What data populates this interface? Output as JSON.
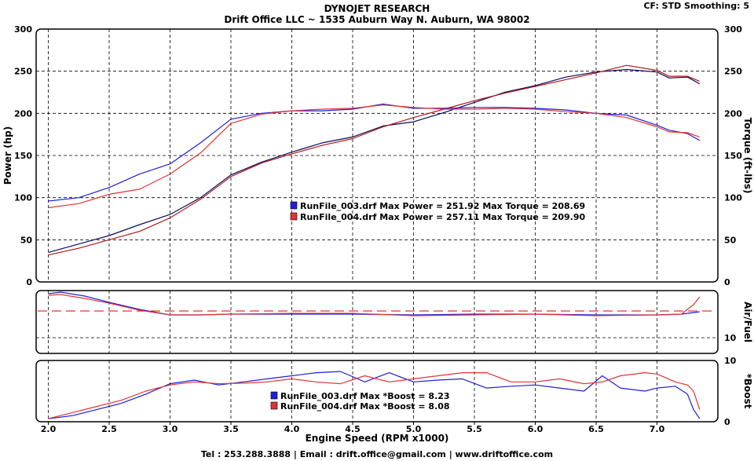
{
  "header": {
    "title": "DYNOJET RESEARCH",
    "subtitle": "Drift Office LLC ~ 1535 Auburn Way N. Auburn, WA 98002",
    "settings": "CF: STD  Smoothing: 5"
  },
  "footer": "Tel : 253.288.3888 | Email : drift.office@gmail.com | www.driftoffice.com",
  "colors": {
    "run003": "#1f1fd8",
    "run004": "#e03434",
    "run003_dark": "#0a0a60",
    "run004_dark": "#b01818"
  },
  "chart_data": [
    {
      "type": "line",
      "title": "",
      "xlabel": "Engine Speed (RPM x1000)",
      "ylabel_left": "Power (hp)",
      "ylabel_right": "Torque (ft-lbs)",
      "xlim": [
        1.9,
        7.5
      ],
      "ylim": [
        0,
        300
      ],
      "xticks": [
        "2.0",
        "2.5",
        "3.0",
        "3.5",
        "4.0",
        "4.5",
        "5.0",
        "5.5",
        "6.0",
        "6.5",
        "7.0"
      ],
      "yticks": [
        "0",
        "50",
        "100",
        "150",
        "200",
        "250",
        "300"
      ],
      "grid": true,
      "legend": [
        {
          "text": "RunFile_003.drf Max Power = 251.92     Max Torque = 208.69",
          "series": "run003"
        },
        {
          "text": "RunFile_004.drf Max Power = 257.11     Max Torque = 209.90",
          "series": "run004"
        }
      ],
      "series": [
        {
          "name": "RunFile_003.drf",
          "measure": "Power",
          "color_key": "run003_dark",
          "x": [
            2.0,
            2.25,
            2.5,
            2.75,
            3.0,
            3.25,
            3.5,
            3.75,
            4.0,
            4.25,
            4.5,
            4.75,
            5.0,
            5.25,
            5.5,
            5.75,
            6.0,
            6.25,
            6.5,
            6.75,
            7.0,
            7.1,
            7.25,
            7.35
          ],
          "values": [
            35,
            45,
            55,
            68,
            80,
            100,
            127,
            142,
            154,
            165,
            172,
            185,
            190,
            201,
            213,
            225,
            233,
            243,
            249,
            252,
            249,
            242,
            243,
            235
          ]
        },
        {
          "name": "RunFile_004.drf",
          "measure": "Power",
          "color_key": "run004_dark",
          "x": [
            2.0,
            2.25,
            2.5,
            2.75,
            3.0,
            3.25,
            3.5,
            3.75,
            4.0,
            4.25,
            4.5,
            4.75,
            5.0,
            5.25,
            5.5,
            5.75,
            6.0,
            6.25,
            6.5,
            6.75,
            7.0,
            7.1,
            7.25,
            7.35
          ],
          "values": [
            32,
            40,
            50,
            60,
            76,
            98,
            125,
            141,
            152,
            162,
            170,
            184,
            195,
            205,
            215,
            224,
            232,
            240,
            248,
            257,
            251,
            244,
            244,
            238
          ]
        },
        {
          "name": "RunFile_003.drf",
          "measure": "Torque",
          "color_key": "run003",
          "x": [
            2.0,
            2.25,
            2.5,
            2.75,
            3.0,
            3.25,
            3.5,
            3.75,
            4.0,
            4.25,
            4.5,
            4.75,
            5.0,
            5.25,
            5.5,
            5.75,
            6.0,
            6.25,
            6.5,
            6.75,
            7.0,
            7.1,
            7.25,
            7.35
          ],
          "values": [
            96,
            100,
            112,
            128,
            140,
            165,
            193,
            200,
            203,
            203,
            205,
            211,
            206,
            206,
            207,
            207,
            206,
            204,
            200,
            198,
            186,
            180,
            176,
            168
          ]
        },
        {
          "name": "RunFile_004.drf",
          "measure": "Torque",
          "color_key": "run004",
          "x": [
            2.0,
            2.25,
            2.5,
            2.75,
            3.0,
            3.25,
            3.5,
            3.75,
            4.0,
            4.25,
            4.5,
            4.75,
            5.0,
            5.25,
            5.5,
            5.75,
            6.0,
            6.25,
            6.5,
            6.75,
            7.0,
            7.1,
            7.25,
            7.35
          ],
          "values": [
            88,
            93,
            104,
            110,
            128,
            153,
            188,
            199,
            203,
            205,
            206,
            210,
            207,
            205,
            205,
            206,
            205,
            202,
            200,
            195,
            184,
            178,
            177,
            172
          ]
        }
      ]
    },
    {
      "type": "line",
      "title": "",
      "xlabel": "",
      "ylabel": "Air/Fuel",
      "xlim": [
        1.9,
        7.5
      ],
      "ylim": [
        8,
        16
      ],
      "yticks": [
        "10"
      ],
      "reference_line": 13.4,
      "grid": true,
      "series": [
        {
          "name": "RunFile_003.drf",
          "color_key": "run003",
          "x": [
            2.0,
            2.1,
            2.3,
            2.5,
            2.75,
            3.0,
            3.25,
            3.5,
            4.0,
            4.5,
            5.0,
            5.5,
            6.0,
            6.5,
            7.0,
            7.2,
            7.3,
            7.35
          ],
          "values": [
            15.6,
            15.8,
            15.3,
            14.5,
            13.6,
            12.9,
            12.9,
            13.0,
            13.0,
            13.0,
            12.9,
            13.0,
            13.0,
            12.9,
            12.9,
            13.0,
            13.2,
            13.3
          ]
        },
        {
          "name": "RunFile_004.drf",
          "color_key": "run004",
          "x": [
            2.0,
            2.1,
            2.3,
            2.5,
            2.75,
            3.0,
            3.25,
            3.5,
            4.0,
            4.5,
            5.0,
            5.5,
            6.0,
            6.5,
            7.0,
            7.2,
            7.3,
            7.35
          ],
          "values": [
            15.4,
            15.5,
            15.0,
            14.4,
            13.5,
            12.9,
            12.9,
            13.0,
            13.1,
            13.1,
            12.8,
            12.9,
            13.0,
            12.8,
            12.9,
            13.0,
            14.2,
            15.2
          ]
        }
      ]
    },
    {
      "type": "line",
      "title": "",
      "xlabel": "Engine Speed (RPM x1000)",
      "ylabel": "*Boost",
      "xlim": [
        1.9,
        7.5
      ],
      "ylim": [
        0,
        10
      ],
      "yticks": [
        "0",
        "10"
      ],
      "xticks": [
        "2.0",
        "2.5",
        "3.0",
        "3.5",
        "4.0",
        "4.5",
        "5.0",
        "5.5",
        "6.0",
        "6.5",
        "7.0"
      ],
      "grid": true,
      "legend": [
        {
          "text": "RunFile_003.drf Max *Boost = 8.23",
          "series": "run003"
        },
        {
          "text": "RunFile_004.drf Max *Boost = 8.08",
          "series": "run004"
        }
      ],
      "series": [
        {
          "name": "RunFile_003.drf",
          "color_key": "run003",
          "x": [
            2.0,
            2.2,
            2.4,
            2.6,
            2.8,
            3.0,
            3.2,
            3.4,
            3.6,
            3.8,
            4.0,
            4.2,
            4.4,
            4.6,
            4.8,
            5.0,
            5.2,
            5.4,
            5.6,
            5.8,
            6.0,
            6.2,
            6.4,
            6.55,
            6.7,
            6.9,
            7.0,
            7.15,
            7.25,
            7.3,
            7.35
          ],
          "values": [
            0.5,
            1.0,
            2.0,
            3.0,
            4.5,
            6.2,
            6.8,
            6.0,
            6.5,
            7.0,
            7.5,
            8.0,
            8.2,
            6.5,
            8.0,
            6.5,
            6.8,
            7.0,
            5.5,
            5.8,
            6.0,
            5.5,
            5.0,
            7.5,
            5.5,
            5.0,
            5.5,
            5.8,
            4.5,
            2.0,
            0.5
          ]
        },
        {
          "name": "RunFile_004.drf",
          "color_key": "run004",
          "x": [
            2.0,
            2.2,
            2.4,
            2.6,
            2.8,
            3.0,
            3.2,
            3.4,
            3.6,
            3.8,
            4.0,
            4.2,
            4.4,
            4.6,
            4.8,
            5.0,
            5.2,
            5.4,
            5.6,
            5.8,
            6.0,
            6.2,
            6.4,
            6.55,
            6.7,
            6.9,
            7.0,
            7.15,
            7.25,
            7.3,
            7.35
          ],
          "values": [
            0.5,
            1.5,
            2.5,
            3.5,
            5.0,
            6.0,
            6.5,
            6.2,
            6.3,
            6.5,
            7.0,
            6.5,
            6.2,
            7.5,
            6.5,
            7.0,
            7.5,
            8.0,
            8.0,
            6.5,
            6.5,
            7.0,
            6.2,
            6.5,
            7.5,
            8.0,
            7.8,
            6.5,
            6.0,
            5.0,
            2.0
          ]
        }
      ]
    }
  ]
}
